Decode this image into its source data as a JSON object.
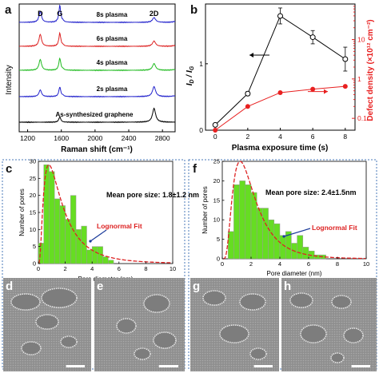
{
  "panel_labels": {
    "a": "a",
    "b": "b",
    "c": "c",
    "d": "d",
    "e": "e",
    "f": "f",
    "g": "g",
    "h": "h"
  },
  "colors": {
    "raman": [
      "#000000",
      "#2222cc",
      "#22bb22",
      "#dd2222",
      "#2222cc"
    ],
    "id_ig": "#000000",
    "defect": "#e82020",
    "hist_fill": "#66dd22",
    "lognormal": "#dd2222",
    "arrow_fit": "#1a3a9a",
    "dotted_border": "#4a7ab8"
  },
  "chart_data": [
    {
      "id": "a",
      "type": "line",
      "xlabel": "Raman shift (cm⁻¹)",
      "ylabel": "Intensity",
      "xlim": [
        1100,
        2950
      ],
      "xticks": [
        1200,
        1600,
        2000,
        2400,
        2800
      ],
      "xtick_labels": [
        "1200",
        "1600",
        "2000",
        "2400",
        "2800"
      ],
      "peak_labels": [
        {
          "text": "D",
          "x": 1350
        },
        {
          "text": "G",
          "x": 1582
        },
        {
          "text": "2D",
          "x": 2700
        }
      ],
      "series": [
        {
          "name": "As-synthesized graphene",
          "offset": 0,
          "D": 0,
          "G": 0.22,
          "D2": 0.58
        },
        {
          "name": "2s plasma",
          "offset": 1,
          "D": 0.28,
          "G": 0.4,
          "D2": 0.42
        },
        {
          "name": "4s plasma",
          "offset": 2,
          "D": 0.45,
          "G": 0.5,
          "D2": 0.28
        },
        {
          "name": "6s plasma",
          "offset": 3,
          "D": 0.5,
          "G": 0.55,
          "D2": 0.22
        },
        {
          "name": "8s plasma",
          "offset": 4,
          "D": 0.45,
          "G": 0.7,
          "D2": 0.2
        }
      ]
    },
    {
      "id": "b",
      "type": "line",
      "xlabel": "Plasma exposure time (s)",
      "xticks": [
        0,
        2,
        4,
        6,
        8
      ],
      "xlim": [
        -0.6,
        8.6
      ],
      "left_axis": {
        "label": "I_D / I_G",
        "ylim": [
          0,
          1.9
        ],
        "yticks": [
          0,
          1
        ],
        "values": [
          0.08,
          0.55,
          1.72,
          1.4,
          1.07
        ],
        "errors": [
          0.02,
          0.03,
          0.12,
          0.1,
          0.18
        ]
      },
      "right_axis": {
        "label": "Defect density (×10¹² cm⁻²)",
        "scale": "log",
        "ylim": [
          0.05,
          80
        ],
        "yticks": [
          0.1,
          1,
          10
        ],
        "ytick_labels": [
          "0.1",
          "1",
          "10"
        ],
        "values": [
          0.05,
          0.2,
          0.45,
          0.55,
          0.65
        ]
      }
    },
    {
      "id": "c",
      "type": "bar",
      "annotation": "Mean pore size: 1.8±1.2 nm",
      "fit_label": "Lognormal Fit",
      "xlabel": "Pore diameter (nm)",
      "ylabel": "Number of pores",
      "xlim": [
        0,
        10
      ],
      "ylim": [
        0,
        30
      ],
      "xticks": [
        0,
        2,
        4,
        6,
        8,
        10
      ],
      "yticks": [
        0,
        5,
        10,
        15,
        20,
        25,
        30
      ],
      "bin_width": 0.4,
      "bin_start": 0,
      "values": [
        6,
        29,
        27,
        19,
        17,
        13,
        20,
        10,
        11,
        4,
        5,
        5,
        2,
        1
      ],
      "fit": {
        "mu": 0.42,
        "sigma": 0.82,
        "peak": 29
      }
    },
    {
      "id": "f",
      "type": "bar",
      "annotation": "Mean pore size: 2.4±1.5nm",
      "fit_label": "Lognormal Fit",
      "xlabel": "Pore diameter (nm)",
      "ylabel": "Number of pores",
      "xlim": [
        0,
        10
      ],
      "ylim": [
        0,
        25
      ],
      "xticks": [
        0,
        2,
        4,
        6,
        8,
        10
      ],
      "yticks": [
        0,
        5,
        10,
        15,
        20,
        25
      ],
      "bin_width": 0.4,
      "bin_start": 0.4,
      "values": [
        7,
        19,
        20,
        19,
        17,
        13,
        13,
        10,
        9,
        6,
        7,
        4,
        6,
        3,
        2,
        1,
        1
      ],
      "fit": {
        "mu": 0.6,
        "sigma": 0.62,
        "peak": 25
      }
    }
  ]
}
